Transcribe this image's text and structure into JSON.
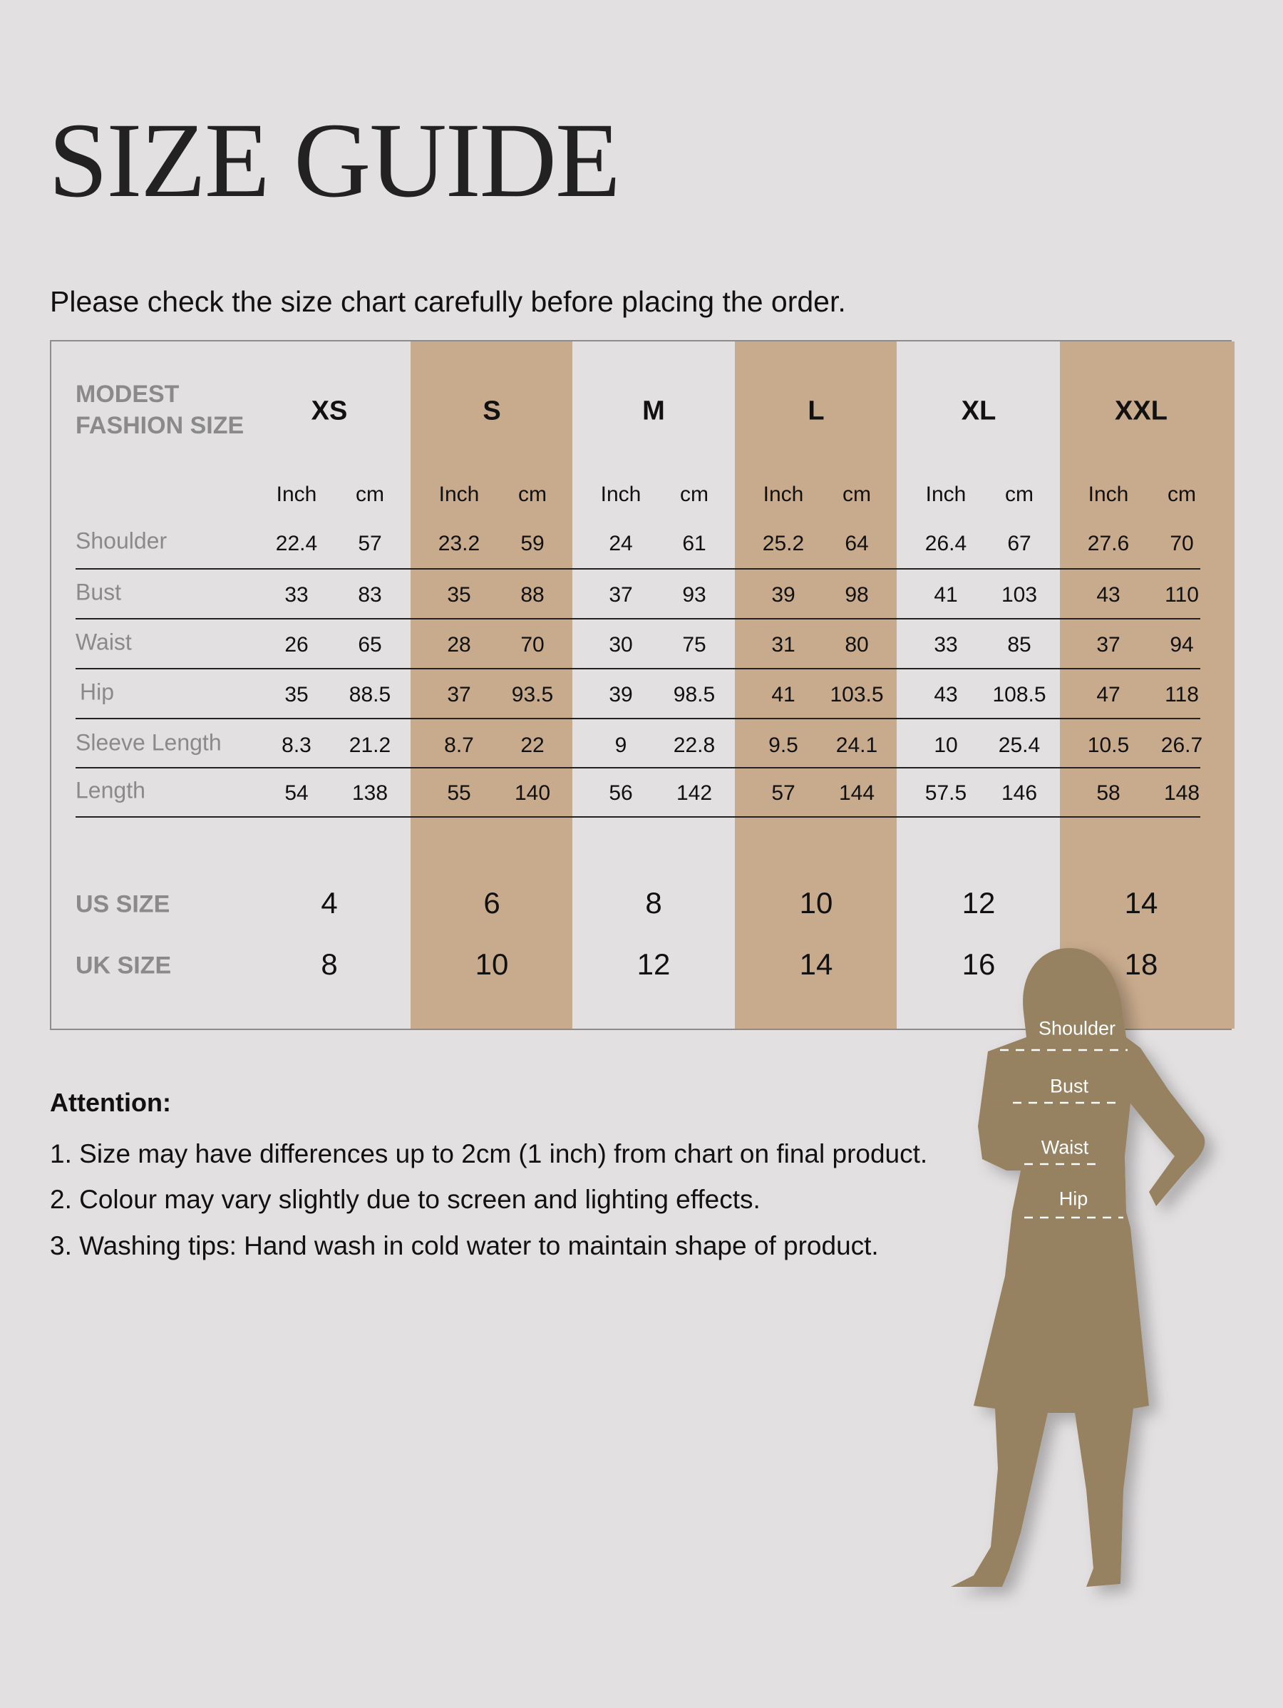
{
  "title": "SIZE GUIDE",
  "subtitle": "Please check the size chart carefully before placing the order.",
  "colors": {
    "background": "#e2e0e1",
    "stripe": "#c8aa8c",
    "silhouette": "#968160",
    "label_gray": "#8a8a8a"
  },
  "table": {
    "corner_label_line1": "MODEST",
    "corner_label_line2": "FASHION SIZE",
    "sizes": [
      "XS",
      "S",
      "M",
      "L",
      "XL",
      "XXL"
    ],
    "units": [
      "Inch",
      "cm"
    ],
    "rows": [
      {
        "label": "Shoulder",
        "values": [
          [
            "22.4",
            "57"
          ],
          [
            "23.2",
            "59"
          ],
          [
            "24",
            "61"
          ],
          [
            "25.2",
            "64"
          ],
          [
            "26.4",
            "67"
          ],
          [
            "27.6",
            "70"
          ]
        ]
      },
      {
        "label": "Bust",
        "values": [
          [
            "33",
            "83"
          ],
          [
            "35",
            "88"
          ],
          [
            "37",
            "93"
          ],
          [
            "39",
            "98"
          ],
          [
            "41",
            "103"
          ],
          [
            "43",
            "110"
          ]
        ]
      },
      {
        "label": "Waist",
        "values": [
          [
            "26",
            "65"
          ],
          [
            "28",
            "70"
          ],
          [
            "30",
            "75"
          ],
          [
            "31",
            "80"
          ],
          [
            "33",
            "85"
          ],
          [
            "37",
            "94"
          ]
        ]
      },
      {
        "label": "Hip",
        "values": [
          [
            "35",
            "88.5"
          ],
          [
            "37",
            "93.5"
          ],
          [
            "39",
            "98.5"
          ],
          [
            "41",
            "103.5"
          ],
          [
            "43",
            "108.5"
          ],
          [
            "47",
            "118"
          ]
        ]
      },
      {
        "label": "Sleeve Length",
        "values": [
          [
            "8.3",
            "21.2"
          ],
          [
            "8.7",
            "22"
          ],
          [
            "9",
            "22.8"
          ],
          [
            "9.5",
            "24.1"
          ],
          [
            "10",
            "25.4"
          ],
          [
            "10.5",
            "26.7"
          ]
        ]
      },
      {
        "label": "Length",
        "values": [
          [
            "54",
            "138"
          ],
          [
            "55",
            "140"
          ],
          [
            "56",
            "142"
          ],
          [
            "57",
            "144"
          ],
          [
            "57.5",
            "146"
          ],
          [
            "58",
            "148"
          ]
        ]
      }
    ],
    "us_size": {
      "label": "US SIZE",
      "values": [
        "4",
        "6",
        "8",
        "10",
        "12",
        "14"
      ]
    },
    "uk_size": {
      "label": "UK SIZE",
      "values": [
        "8",
        "10",
        "12",
        "14",
        "16",
        "18"
      ]
    }
  },
  "attention": {
    "heading": "Attention:",
    "items": [
      "1. Size may have differences up to 2cm (1 inch) from chart on final product.",
      "2. Colour may vary slightly due to screen and lighting effects.",
      "3. Washing tips: Hand wash in cold water to maintain shape of product."
    ]
  },
  "figure": {
    "labels": [
      "Shoulder",
      "Bust",
      "Waist",
      "Hip"
    ]
  }
}
